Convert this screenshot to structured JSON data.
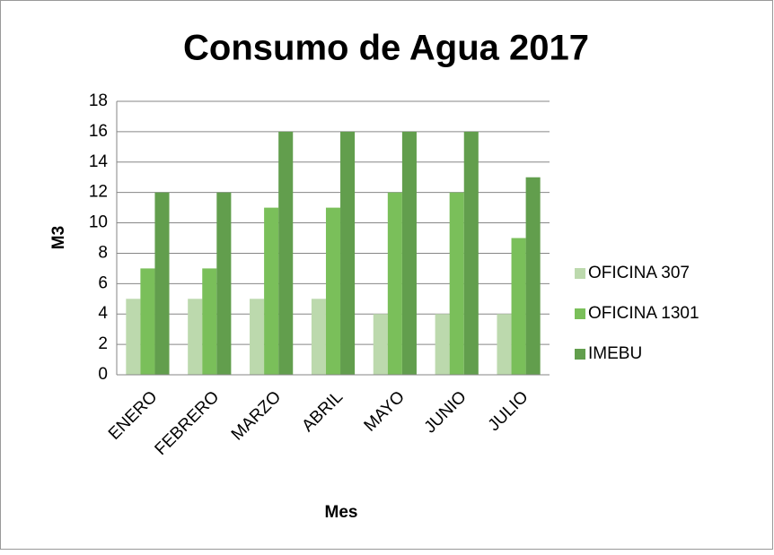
{
  "chart_data": {
    "type": "bar",
    "title": "Consumo de Agua 2017",
    "x_label": "Mes",
    "y_label": "M3",
    "categories": [
      "ENERO",
      "FEBRERO",
      "MARZO",
      "ABRIL",
      "MAYO",
      "JUNIO",
      "JULIO"
    ],
    "series": [
      {
        "name": "OFICINA 307",
        "color": "#bcd9ad",
        "values": [
          5,
          5,
          5,
          5,
          4,
          4,
          4
        ]
      },
      {
        "name": "OFICINA 1301",
        "color": "#7abf5a",
        "values": [
          7,
          7,
          11,
          11,
          12,
          12,
          9
        ]
      },
      {
        "name": "IMEBU",
        "color": "#629e4d",
        "values": [
          12,
          12,
          16,
          16,
          16,
          16,
          13
        ]
      }
    ],
    "ylim": [
      0,
      18
    ],
    "yticks": [
      0,
      2,
      4,
      6,
      8,
      10,
      12,
      14,
      16,
      18
    ],
    "grid": true,
    "legend": "right"
  }
}
